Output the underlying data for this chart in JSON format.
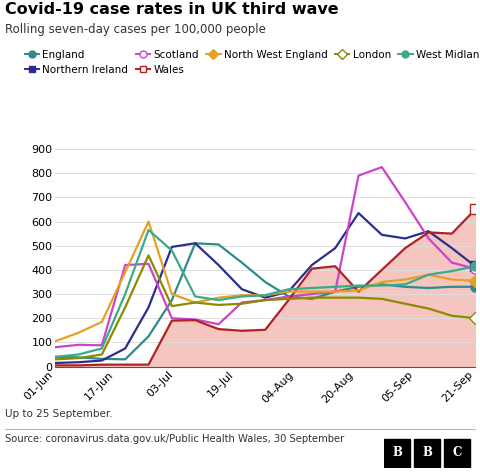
{
  "title": "Covid-19 case rates in UK third wave",
  "subtitle": "Rolling seven-day cases per 100,000 people",
  "footnote": "Up to 25 September.",
  "source": "Source: coronavirus.data.gov.uk/Public Health Wales, 30 September",
  "xtick_labels": [
    "01-Jun",
    "17-Jun",
    "03-Jul",
    "19-Jul",
    "04-Aug",
    "20-Aug",
    "05-Sep",
    "21-Sep"
  ],
  "ytick_labels": [
    0,
    100,
    200,
    300,
    400,
    500,
    600,
    700,
    800,
    900
  ],
  "ylim": [
    0,
    900
  ],
  "series_order": [
    "England",
    "Northern Ireland",
    "Scotland",
    "Wales",
    "North West England",
    "London",
    "West Midlands"
  ],
  "series": {
    "England": {
      "color": "#2e8b8c",
      "marker": "o",
      "marker_face": "#2e8b8c",
      "values": [
        40,
        38,
        32,
        30,
        125,
        275,
        510,
        505,
        430,
        350,
        290,
        280,
        310,
        330,
        340,
        330,
        325,
        330,
        330
      ]
    },
    "Northern Ireland": {
      "color": "#2d2d8f",
      "marker": "s",
      "marker_face": "#2d2d8f",
      "values": [
        15,
        18,
        25,
        75,
        245,
        495,
        510,
        420,
        320,
        285,
        310,
        420,
        490,
        635,
        545,
        530,
        560,
        490,
        415
      ]
    },
    "Scotland": {
      "color": "#cc44cc",
      "marker": "o",
      "marker_face": "white",
      "values": [
        80,
        90,
        88,
        420,
        425,
        200,
        195,
        175,
        265,
        275,
        290,
        300,
        310,
        790,
        825,
        680,
        530,
        430,
        405
      ]
    },
    "Wales": {
      "color": "#b22222",
      "marker": "s",
      "marker_face": "white",
      "values": [
        5,
        5,
        8,
        8,
        8,
        190,
        192,
        155,
        148,
        152,
        275,
        405,
        415,
        310,
        400,
        490,
        555,
        550,
        650
      ]
    },
    "North West England": {
      "color": "#e8a020",
      "marker": "D",
      "marker_face": "#e8a020",
      "values": [
        105,
        140,
        185,
        390,
        600,
        300,
        265,
        285,
        295,
        295,
        310,
        310,
        310,
        315,
        350,
        360,
        380,
        360,
        355
      ]
    },
    "London": {
      "color": "#8b8b00",
      "marker": "D",
      "marker_face": "white",
      "values": [
        30,
        35,
        50,
        245,
        460,
        250,
        265,
        255,
        260,
        275,
        280,
        285,
        285,
        285,
        280,
        260,
        240,
        210,
        200
      ]
    },
    "West Midlands": {
      "color": "#3aaa88",
      "marker": "o",
      "marker_face": "#3aaa88",
      "values": [
        40,
        50,
        75,
        300,
        565,
        480,
        290,
        275,
        290,
        295,
        320,
        325,
        330,
        335,
        335,
        340,
        380,
        395,
        415
      ]
    }
  },
  "shading_color": "#f5c6c0",
  "grid_color": "#dddddd",
  "title_fontsize": 11.5,
  "subtitle_fontsize": 8.5,
  "legend_fontsize": 7.5,
  "tick_fontsize": 8
}
